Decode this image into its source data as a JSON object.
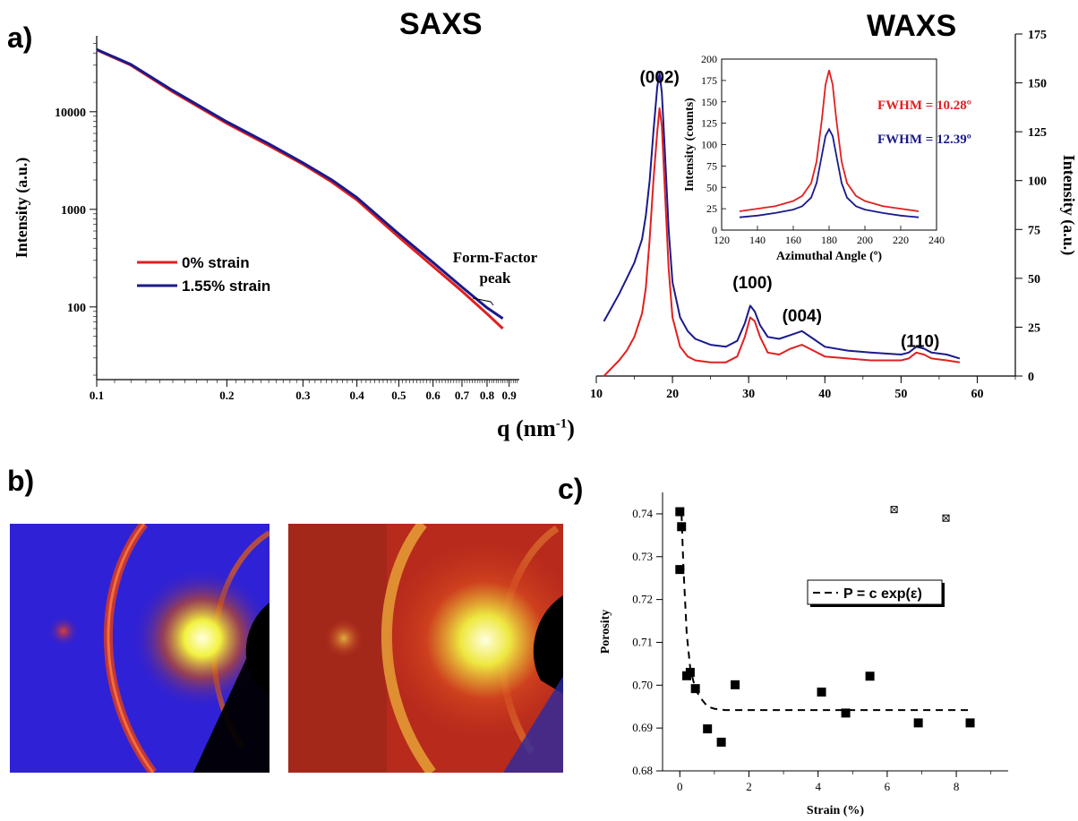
{
  "panels": {
    "a": "a)",
    "b": "b)",
    "c": "c)"
  },
  "titles": {
    "saxs": "SAXS",
    "waxs": "WAXS"
  },
  "shared_xlabel": {
    "main": "q (nm",
    "sup": "-1",
    "tail": ")"
  },
  "colors": {
    "red": "#e0201f",
    "blue": "#1a1a8c",
    "black": "#000000"
  },
  "chart_data": [
    {
      "id": "saxs",
      "type": "line",
      "xscale": "log",
      "yscale": "log",
      "xlim": [
        0.1,
        0.95
      ],
      "ylim": [
        18,
        60000
      ],
      "xticks": [
        0.1,
        0.2,
        0.3,
        0.4,
        0.5,
        0.6,
        0.7,
        0.8,
        0.9
      ],
      "xtick_labels": [
        "0.1",
        "0.2",
        "0.3",
        "0.4",
        "0.5",
        "0.6",
        "0.7",
        "0.8",
        "0.9"
      ],
      "yticks": [
        100,
        1000,
        10000
      ],
      "ytick_labels": [
        "100",
        "1000",
        "10000"
      ],
      "ylabel": "Intensity (a.u.)",
      "annotation": [
        "Form-Factor",
        "peak"
      ],
      "legend_position": "middle-left",
      "series": [
        {
          "name": "0% strain",
          "color": "#e0201f",
          "x": [
            0.1,
            0.12,
            0.15,
            0.2,
            0.25,
            0.3,
            0.35,
            0.4,
            0.5,
            0.6,
            0.7,
            0.8,
            0.87
          ],
          "y": [
            43000,
            30000,
            16000,
            7600,
            4500,
            2900,
            1900,
            1250,
            520,
            260,
            145,
            85,
            60
          ]
        },
        {
          "name": "1.55% strain",
          "color": "#1a1a8c",
          "x": [
            0.1,
            0.12,
            0.15,
            0.2,
            0.25,
            0.3,
            0.35,
            0.4,
            0.5,
            0.6,
            0.7,
            0.8,
            0.87
          ],
          "y": [
            43500,
            30500,
            16500,
            7900,
            4700,
            3000,
            2000,
            1320,
            560,
            285,
            160,
            98,
            76
          ]
        }
      ]
    },
    {
      "id": "waxs",
      "type": "line",
      "xlim": [
        10,
        65
      ],
      "ylim": [
        0,
        175
      ],
      "xticks": [
        10,
        20,
        30,
        40,
        50,
        60
      ],
      "yticks": [
        0,
        25,
        50,
        75,
        100,
        125,
        150,
        175
      ],
      "ylabel": "Intensity (a.u.)",
      "y_axis_side": "right",
      "peak_labels": [
        {
          "text": "(002)",
          "x": 18.3,
          "y": 150
        },
        {
          "text": "(100)",
          "x": 30.5,
          "y": 45
        },
        {
          "text": "(004)",
          "x": 37,
          "y": 28
        },
        {
          "text": "(110)",
          "x": 52.5,
          "y": 15
        }
      ],
      "series": [
        {
          "name": "0% strain",
          "color": "#e0201f",
          "x": [
            11,
            12,
            13,
            14,
            15,
            16,
            16.5,
            17,
            17.5,
            18,
            18.3,
            18.6,
            19,
            19.5,
            20,
            21,
            22,
            23,
            25,
            27,
            28.5,
            29.5,
            30.2,
            30.8,
            31.5,
            32.5,
            34,
            35.5,
            37,
            38.5,
            40,
            43,
            46,
            50,
            51,
            52,
            53,
            54,
            56,
            57.7
          ],
          "y": [
            0,
            4,
            8,
            13,
            20,
            32,
            45,
            70,
            100,
            125,
            137,
            128,
            95,
            55,
            30,
            15,
            10,
            8,
            7,
            7,
            10,
            20,
            30,
            28,
            20,
            12,
            11,
            14,
            16,
            13,
            10,
            9,
            8,
            8,
            9,
            12,
            11,
            9,
            8,
            7
          ]
        },
        {
          "name": "1.55% strain",
          "color": "#1a1a8c",
          "x": [
            11,
            12,
            13,
            14,
            15,
            16,
            16.5,
            17,
            17.5,
            18,
            18.3,
            18.6,
            19,
            19.5,
            20,
            21,
            22,
            23,
            25,
            27,
            28.5,
            29.5,
            30.2,
            30.8,
            31.5,
            32.5,
            34,
            35.5,
            37,
            38.5,
            40,
            43,
            46,
            50,
            51,
            52,
            53,
            54,
            56,
            57.7
          ],
          "y": [
            28,
            35,
            42,
            50,
            58,
            70,
            82,
            100,
            125,
            148,
            155,
            145,
            115,
            75,
            48,
            30,
            23,
            19,
            16,
            15,
            18,
            27,
            36,
            33,
            26,
            20,
            19,
            21,
            23,
            19,
            15,
            13,
            12,
            11,
            12,
            15,
            14,
            12,
            11,
            9
          ]
        }
      ]
    },
    {
      "id": "waxs_inset",
      "type": "line",
      "xlim": [
        120,
        240
      ],
      "ylim": [
        0,
        200
      ],
      "xticks": [
        120,
        140,
        160,
        180,
        200,
        220,
        240
      ],
      "yticks": [
        0,
        25,
        50,
        75,
        100,
        125,
        150,
        175,
        200
      ],
      "xlabel": "Azimuthal Angle (º)",
      "ylabel": "Intensity (counts)",
      "annotations": [
        {
          "text": "FWHM = 10.28º",
          "color": "#e0201f"
        },
        {
          "text": "FWHM = 12.39º",
          "color": "#1a1a8c"
        }
      ],
      "series": [
        {
          "color": "#e0201f",
          "x": [
            130,
            140,
            150,
            160,
            165,
            170,
            173,
            176,
            178,
            180,
            182,
            184,
            187,
            190,
            195,
            200,
            210,
            220,
            230
          ],
          "y": [
            22,
            25,
            28,
            34,
            40,
            55,
            80,
            130,
            170,
            187,
            170,
            130,
            80,
            55,
            40,
            34,
            28,
            25,
            22
          ]
        },
        {
          "color": "#1a1a8c",
          "x": [
            130,
            140,
            150,
            160,
            165,
            170,
            173,
            176,
            178,
            180,
            182,
            184,
            187,
            190,
            195,
            200,
            210,
            220,
            230
          ],
          "y": [
            15,
            17,
            20,
            24,
            28,
            38,
            55,
            88,
            110,
            118,
            110,
            88,
            55,
            38,
            28,
            24,
            20,
            17,
            15
          ]
        }
      ]
    },
    {
      "id": "porosity",
      "type": "scatter",
      "xlim": [
        -0.5,
        9.5
      ],
      "ylim": [
        0.68,
        0.745
      ],
      "xticks": [
        0,
        2,
        4,
        6,
        8
      ],
      "yticks": [
        0.68,
        0.69,
        0.7,
        0.71,
        0.72,
        0.73,
        0.74
      ],
      "ytick_labels": [
        "0.68",
        "0.69",
        "0.70",
        "0.71",
        "0.72",
        "0.73",
        "0.74"
      ],
      "xlabel": "Strain (%)",
      "ylabel": "Porosity",
      "legend_text": "P = c exp(ε)",
      "points": {
        "x": [
          0.0,
          0.0,
          0.05,
          0.2,
          0.3,
          0.45,
          0.8,
          1.2,
          1.6,
          4.1,
          4.8,
          5.5,
          6.9,
          8.4
        ],
        "y": [
          0.7405,
          0.727,
          0.737,
          0.7022,
          0.703,
          0.6992,
          0.6898,
          0.6867,
          0.7001,
          0.6984,
          0.6935,
          0.7021,
          0.6912,
          0.6912
        ]
      },
      "fit": {
        "x": [
          0.05,
          0.1,
          0.2,
          0.3,
          0.45,
          0.6,
          0.8,
          1.0,
          1.3,
          2,
          4,
          6,
          8.4
        ],
        "y": [
          0.74,
          0.728,
          0.712,
          0.704,
          0.699,
          0.697,
          0.695,
          0.6945,
          0.6942,
          0.6942,
          0.6942,
          0.6942,
          0.6942
        ]
      },
      "marker_points": {
        "x": [
          6.2,
          7.7
        ],
        "y": [
          0.741,
          0.739
        ]
      }
    }
  ]
}
